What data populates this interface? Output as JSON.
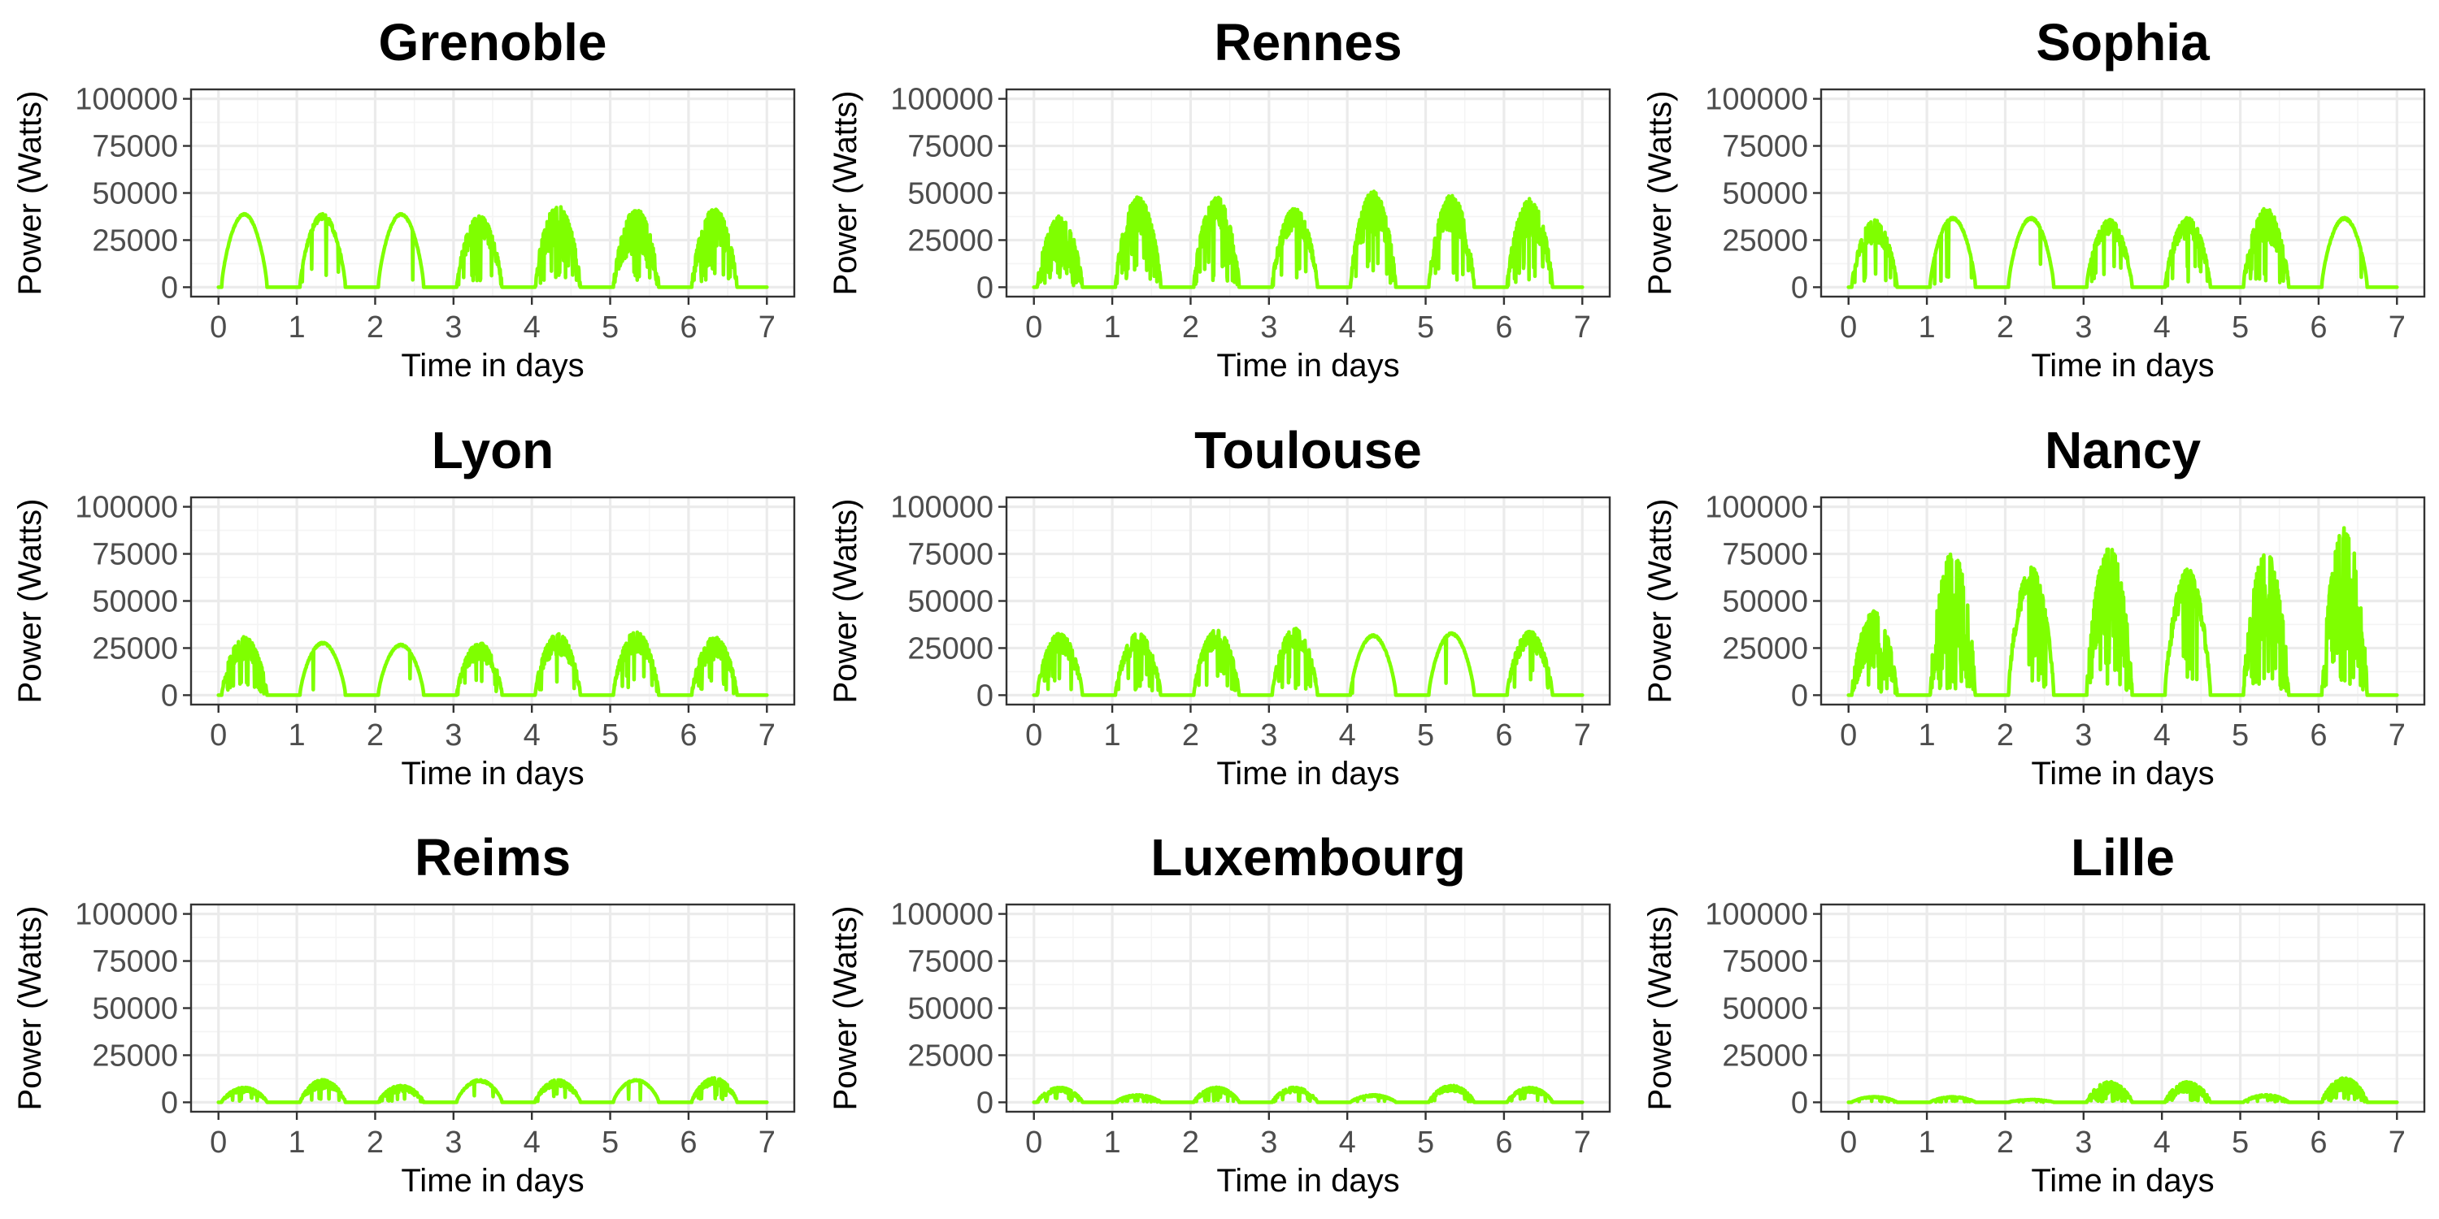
{
  "chart_data": {
    "type": "line",
    "layout": {
      "rows": 3,
      "cols": 3
    },
    "series_color": "#7FFF00",
    "panels": [
      {
        "title": "Grenoble",
        "xlabel": "Time in days",
        "ylabel": "Power (Watts)",
        "xlim": [
          0,
          7
        ],
        "ylim": [
          0,
          100000
        ],
        "xticks": [
          0,
          1,
          2,
          3,
          4,
          5,
          6,
          7
        ],
        "yticks": [
          0,
          25000,
          50000,
          75000,
          100000
        ],
        "days": [
          {
            "peak": 39000,
            "rough": 0.02
          },
          {
            "peak": 39000,
            "rough": 0.08
          },
          {
            "peak": 39000,
            "rough": 0.02
          },
          {
            "peak": 38000,
            "rough": 0.35
          },
          {
            "peak": 44000,
            "rough": 0.5
          },
          {
            "peak": 42000,
            "rough": 0.6
          },
          {
            "peak": 42000,
            "rough": 0.5
          }
        ]
      },
      {
        "title": "Rennes",
        "xlabel": "Time in days",
        "ylabel": "Power (Watts)",
        "xlim": [
          0,
          7
        ],
        "ylim": [
          0,
          100000
        ],
        "xticks": [
          0,
          1,
          2,
          3,
          4,
          5,
          6,
          7
        ],
        "yticks": [
          0,
          25000,
          50000,
          75000,
          100000
        ],
        "days": [
          {
            "peak": 38000,
            "rough": 0.8
          },
          {
            "peak": 48000,
            "rough": 0.4
          },
          {
            "peak": 48000,
            "rough": 0.35
          },
          {
            "peak": 42000,
            "rough": 0.3
          },
          {
            "peak": 51000,
            "rough": 0.45
          },
          {
            "peak": 49000,
            "rough": 0.4
          },
          {
            "peak": 47000,
            "rough": 0.45
          }
        ]
      },
      {
        "title": "Sophia",
        "xlabel": "Time in days",
        "ylabel": "Power (Watts)",
        "xlim": [
          0,
          7
        ],
        "ylim": [
          0,
          100000
        ],
        "xticks": [
          0,
          1,
          2,
          3,
          4,
          5,
          6,
          7
        ],
        "yticks": [
          0,
          25000,
          50000,
          75000,
          100000
        ],
        "days": [
          {
            "peak": 36000,
            "rough": 0.35
          },
          {
            "peak": 37000,
            "rough": 0.03
          },
          {
            "peak": 37000,
            "rough": 0.03
          },
          {
            "peak": 36000,
            "rough": 0.25
          },
          {
            "peak": 37000,
            "rough": 0.3
          },
          {
            "peak": 42000,
            "rough": 0.45
          },
          {
            "peak": 37000,
            "rough": 0.03
          }
        ]
      },
      {
        "title": "Lyon",
        "xlabel": "Time in days",
        "ylabel": "Power (Watts)",
        "xlim": [
          0,
          7
        ],
        "ylim": [
          0,
          100000
        ],
        "xticks": [
          0,
          1,
          2,
          3,
          4,
          5,
          6,
          7
        ],
        "yticks": [
          0,
          25000,
          50000,
          75000,
          100000
        ],
        "days": [
          {
            "peak": 31000,
            "rough": 0.4
          },
          {
            "peak": 28000,
            "rough": 0.03
          },
          {
            "peak": 27000,
            "rough": 0.03
          },
          {
            "peak": 28000,
            "rough": 0.35
          },
          {
            "peak": 33000,
            "rough": 0.35
          },
          {
            "peak": 34000,
            "rough": 0.35
          },
          {
            "peak": 31000,
            "rough": 0.4
          }
        ]
      },
      {
        "title": "Toulouse",
        "xlabel": "Time in days",
        "ylabel": "Power (Watts)",
        "xlim": [
          0,
          7
        ],
        "ylim": [
          0,
          100000
        ],
        "xticks": [
          0,
          1,
          2,
          3,
          4,
          5,
          6,
          7
        ],
        "yticks": [
          0,
          25000,
          50000,
          75000,
          100000
        ],
        "days": [
          {
            "peak": 33000,
            "rough": 0.35
          },
          {
            "peak": 33000,
            "rough": 0.3
          },
          {
            "peak": 35000,
            "rough": 0.3
          },
          {
            "peak": 36000,
            "rough": 0.3
          },
          {
            "peak": 32000,
            "rough": 0.03
          },
          {
            "peak": 33000,
            "rough": 0.03
          },
          {
            "peak": 34000,
            "rough": 0.3
          }
        ]
      },
      {
        "title": "Nancy",
        "xlabel": "Time in days",
        "ylabel": "Power (Watts)",
        "xlim": [
          0,
          7
        ],
        "ylim": [
          0,
          100000
        ],
        "xticks": [
          0,
          1,
          2,
          3,
          4,
          5,
          6,
          7
        ],
        "yticks": [
          0,
          25000,
          50000,
          75000,
          100000
        ],
        "days": [
          {
            "peak": 45000,
            "rough": 0.7
          },
          {
            "peak": 77000,
            "rough": 0.8
          },
          {
            "peak": 68000,
            "rough": 0.2
          },
          {
            "peak": 80000,
            "rough": 0.6
          },
          {
            "peak": 67000,
            "rough": 0.25
          },
          {
            "peak": 76000,
            "rough": 0.6
          },
          {
            "peak": 90000,
            "rough": 0.75
          }
        ]
      },
      {
        "title": "Reims",
        "xlabel": "Time in days",
        "ylabel": "Power (Watts)",
        "xlim": [
          0,
          7
        ],
        "ylim": [
          0,
          100000
        ],
        "xticks": [
          0,
          1,
          2,
          3,
          4,
          5,
          6,
          7
        ],
        "yticks": [
          0,
          25000,
          50000,
          75000,
          100000
        ],
        "days": [
          {
            "peak": 8000,
            "rough": 0.35
          },
          {
            "peak": 12000,
            "rough": 0.4
          },
          {
            "peak": 9000,
            "rough": 0.4
          },
          {
            "peak": 12000,
            "rough": 0.1
          },
          {
            "peak": 12000,
            "rough": 0.3
          },
          {
            "peak": 12000,
            "rough": 0.05
          },
          {
            "peak": 13000,
            "rough": 0.3
          }
        ]
      },
      {
        "title": "Luxembourg",
        "xlabel": "Time in days",
        "ylabel": "Power (Watts)",
        "xlim": [
          0,
          7
        ],
        "ylim": [
          0,
          100000
        ],
        "xticks": [
          0,
          1,
          2,
          3,
          4,
          5,
          6,
          7
        ],
        "yticks": [
          0,
          25000,
          50000,
          75000,
          100000
        ],
        "days": [
          {
            "peak": 8000,
            "rough": 0.35
          },
          {
            "peak": 4000,
            "rough": 0.3
          },
          {
            "peak": 8000,
            "rough": 0.35
          },
          {
            "peak": 8000,
            "rough": 0.35
          },
          {
            "peak": 4000,
            "rough": 0.3
          },
          {
            "peak": 9000,
            "rough": 0.35
          },
          {
            "peak": 8000,
            "rough": 0.35
          }
        ]
      },
      {
        "title": "Lille",
        "xlabel": "Time in days",
        "ylabel": "Power (Watts)",
        "xlim": [
          0,
          7
        ],
        "ylim": [
          0,
          100000
        ],
        "xticks": [
          0,
          1,
          2,
          3,
          4,
          5,
          6,
          7
        ],
        "yticks": [
          0,
          25000,
          50000,
          75000,
          100000
        ],
        "days": [
          {
            "peak": 3000,
            "rough": 0.2
          },
          {
            "peak": 3000,
            "rough": 0.2
          },
          {
            "peak": 1500,
            "rough": 0.2
          },
          {
            "peak": 11000,
            "rough": 0.6
          },
          {
            "peak": 11000,
            "rough": 0.6
          },
          {
            "peak": 4000,
            "rough": 0.3
          },
          {
            "peak": 13000,
            "rough": 0.6
          }
        ]
      }
    ]
  }
}
